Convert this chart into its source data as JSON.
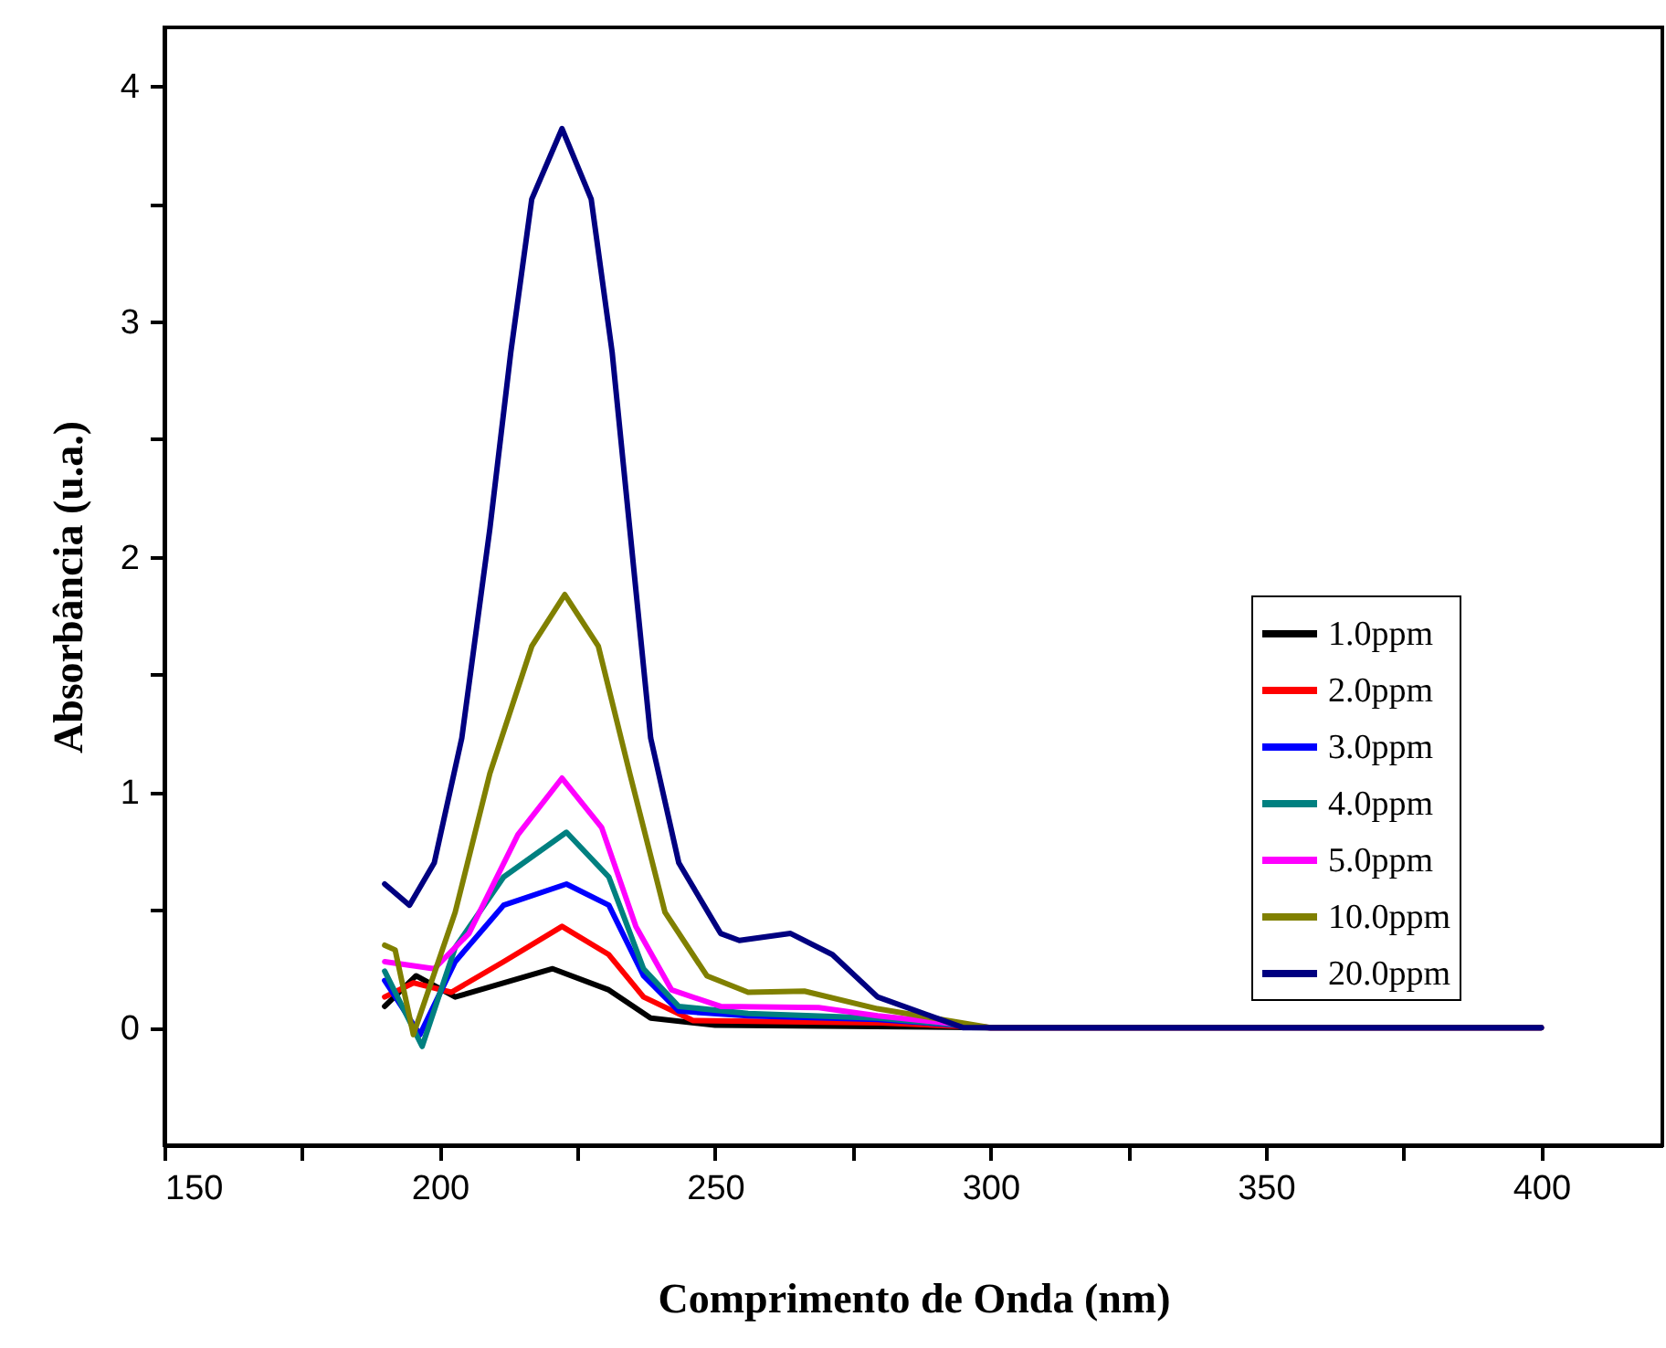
{
  "chart_data": {
    "type": "line",
    "xlabel": "Comprimento de Onda (nm)",
    "ylabel": "Absorbância (u.a.)",
    "xlim": [
      150,
      422
    ],
    "ylim": [
      -0.5,
      4.25
    ],
    "xticks": [
      150,
      {
        "value": 175,
        "label": null
      },
      200,
      {
        "value": 225,
        "label": null
      },
      250,
      {
        "value": 275,
        "label": null
      },
      300,
      {
        "value": 325,
        "label": null
      },
      350,
      {
        "value": 375,
        "label": null
      },
      400
    ],
    "yticks": [
      0,
      {
        "value": 0.5,
        "label": null
      },
      1,
      {
        "value": 1.5,
        "label": null
      },
      2,
      {
        "value": 2.5,
        "label": null
      },
      3,
      {
        "value": 3.5,
        "label": null
      },
      4
    ],
    "grid": false,
    "legend": "right",
    "line_style": "solid",
    "marker": "none",
    "series": [
      {
        "name": "1.0ppm",
        "color": "#000000",
        "x": [
          190,
          195.7,
          202.8,
          220.5,
          230.7,
          238.3,
          250,
          300,
          400
        ],
        "values": [
          0.09,
          0.22,
          0.13,
          0.25,
          0.16,
          0.04,
          0.01,
          0,
          0
        ]
      },
      {
        "name": "2.0ppm",
        "color": "#ff0000",
        "x": [
          190,
          195.2,
          202.1,
          211.6,
          222.2,
          230.7,
          237,
          246,
          280,
          300,
          400
        ],
        "values": [
          0.13,
          0.19,
          0.15,
          0.28,
          0.43,
          0.31,
          0.13,
          0.03,
          0.02,
          0,
          0
        ]
      },
      {
        "name": "3.0ppm",
        "color": "#0000ff",
        "x": [
          190,
          196.4,
          202.8,
          211.6,
          223,
          230.7,
          237,
          243.4,
          256,
          279.5,
          300,
          400
        ],
        "values": [
          0.2,
          -0.03,
          0.28,
          0.52,
          0.61,
          0.52,
          0.22,
          0.07,
          0.05,
          0.035,
          0,
          0
        ]
      },
      {
        "name": "4.0ppm",
        "color": "#008080",
        "x": [
          190,
          196.8,
          202.8,
          211.6,
          223,
          230.7,
          237,
          243.4,
          256,
          279.5,
          300,
          400
        ],
        "values": [
          0.24,
          -0.08,
          0.34,
          0.64,
          0.83,
          0.64,
          0.25,
          0.09,
          0.06,
          0.04,
          0,
          0
        ]
      },
      {
        "name": "5.0ppm",
        "color": "#ff00ff",
        "x": [
          190,
          199,
          205.3,
          214.2,
          222.2,
          229.4,
          235.6,
          242.1,
          251,
          268.8,
          279.5,
          300,
          400
        ],
        "values": [
          0.28,
          0.25,
          0.4,
          0.82,
          1.06,
          0.85,
          0.43,
          0.16,
          0.09,
          0.085,
          0.05,
          0,
          0
        ]
      },
      {
        "name": "10.0ppm",
        "color": "#808000",
        "x": [
          190,
          191.9,
          195.2,
          202.8,
          209.1,
          216.7,
          222.7,
          228.8,
          234.5,
          240.9,
          248.5,
          256,
          266.2,
          279.5,
          300,
          400
        ],
        "values": [
          0.35,
          0.33,
          -0.03,
          0.49,
          1.08,
          1.62,
          1.84,
          1.62,
          1.08,
          0.49,
          0.22,
          0.15,
          0.155,
          0.08,
          0,
          0
        ]
      },
      {
        "name": "20.0ppm",
        "color": "#000080",
        "x": [
          190,
          194.5,
          199,
          204,
          209.1,
          212.9,
          216.7,
          222.2,
          227.5,
          231.3,
          234.5,
          238.3,
          243.4,
          251,
          254.4,
          263.7,
          271.3,
          279.5,
          295,
          400
        ],
        "values": [
          0.61,
          0.52,
          0.7,
          1.23,
          2.12,
          2.87,
          3.52,
          3.82,
          3.52,
          2.87,
          2.12,
          1.23,
          0.7,
          0.4,
          0.37,
          0.4,
          0.31,
          0.13,
          0,
          0
        ]
      }
    ]
  }
}
